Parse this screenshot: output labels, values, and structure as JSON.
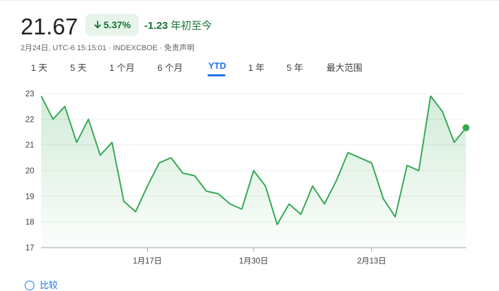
{
  "quote": {
    "price": "21.67",
    "change_percent": "5.37%",
    "change_value": "-1.23",
    "period_label": "年初至今",
    "direction": "down",
    "color_positive": "#137333",
    "badge_bg": "#e6f4ea"
  },
  "meta": {
    "timestamp": "2月24日, UTC-6 15:15:01",
    "exchange": "INDEXCBOE",
    "disclaimer": "免责声明"
  },
  "tabs": [
    {
      "label": "1 天",
      "active": false
    },
    {
      "label": "5 天",
      "active": false
    },
    {
      "label": "1 个月",
      "active": false
    },
    {
      "label": "6 个月",
      "active": false
    },
    {
      "label": "YTD",
      "active": true
    },
    {
      "label": "1 年",
      "active": false
    },
    {
      "label": "5 年",
      "active": false
    },
    {
      "label": "最大范围",
      "active": false
    }
  ],
  "chart_data": {
    "type": "area",
    "title": "",
    "xlabel": "",
    "ylabel": "",
    "ylim": [
      17,
      23
    ],
    "yticks": [
      17,
      18,
      19,
      20,
      21,
      22,
      23
    ],
    "xtick_labels": [
      "1月17日",
      "1月30日",
      "2月13日"
    ],
    "xtick_index": [
      9,
      18,
      28
    ],
    "grid": true,
    "line_color": "#34a853",
    "values": [
      22.9,
      22.0,
      22.5,
      21.1,
      22.0,
      20.6,
      21.1,
      18.8,
      18.4,
      19.4,
      20.3,
      20.5,
      19.9,
      19.8,
      19.2,
      19.1,
      18.7,
      18.5,
      20.0,
      19.4,
      17.9,
      18.7,
      18.3,
      19.4,
      18.7,
      19.6,
      20.7,
      20.5,
      20.3,
      18.9,
      18.2,
      20.2,
      20.0,
      22.9,
      22.3,
      21.1,
      21.67
    ]
  },
  "actions": {
    "compare_label": "比较"
  }
}
